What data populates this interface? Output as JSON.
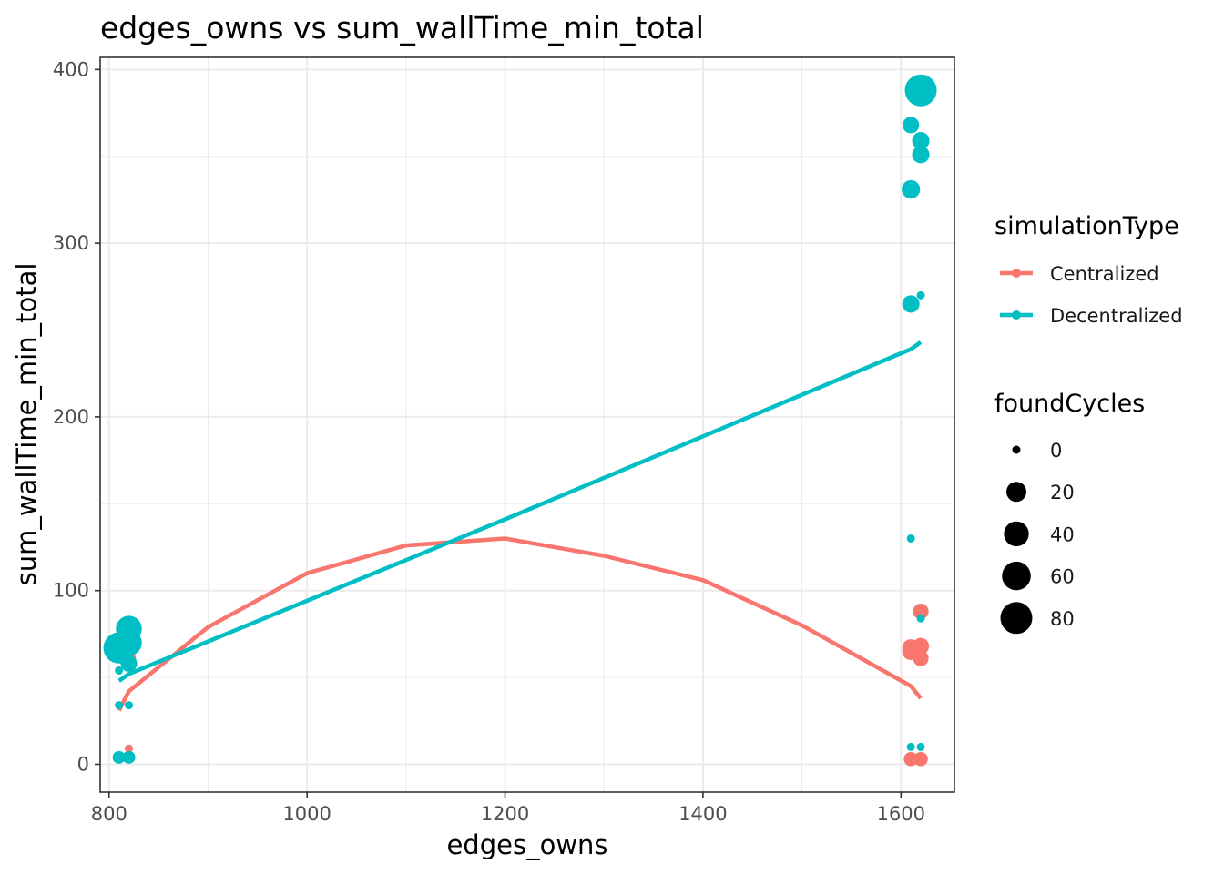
{
  "chart_data": {
    "type": "scatter",
    "title": "edges_owns  vs  sum_wallTime_min_total",
    "xlabel": "edges_owns",
    "ylabel": "sum_wallTime_min_total",
    "xlim": [
      791,
      1654
    ],
    "ylim": [
      -16,
      407
    ],
    "x_ticks": [
      800,
      1000,
      1200,
      1400,
      1600
    ],
    "y_ticks": [
      0,
      100,
      200,
      300,
      400
    ],
    "grid": true,
    "legend_position": "right",
    "color_legend": {
      "title": "simulationType",
      "entries": [
        "Centralized",
        "Decentralized"
      ]
    },
    "size_legend": {
      "title": "foundCycles",
      "entries": [
        0,
        20,
        40,
        60,
        80
      ]
    },
    "series": [
      {
        "name": "Centralized",
        "color": "#F8766D",
        "points": [
          {
            "x": 810,
            "y": 3,
            "size": 0
          },
          {
            "x": 810,
            "y": 4,
            "size": 0
          },
          {
            "x": 820,
            "y": 3,
            "size": 0
          },
          {
            "x": 820,
            "y": 9,
            "size": 0
          },
          {
            "x": 820,
            "y": 61,
            "size": 5
          },
          {
            "x": 1610,
            "y": 3,
            "size": 5
          },
          {
            "x": 1620,
            "y": 3,
            "size": 5
          },
          {
            "x": 1610,
            "y": 65,
            "size": 12
          },
          {
            "x": 1610,
            "y": 67,
            "size": 12
          },
          {
            "x": 1620,
            "y": 61,
            "size": 8
          },
          {
            "x": 1620,
            "y": 68,
            "size": 10
          },
          {
            "x": 1620,
            "y": 88,
            "size": 8
          }
        ],
        "trend": [
          {
            "x": 810,
            "y": 31
          },
          {
            "x": 820,
            "y": 42
          },
          {
            "x": 900,
            "y": 79
          },
          {
            "x": 1000,
            "y": 110
          },
          {
            "x": 1100,
            "y": 126
          },
          {
            "x": 1200,
            "y": 130
          },
          {
            "x": 1300,
            "y": 120
          },
          {
            "x": 1400,
            "y": 106
          },
          {
            "x": 1500,
            "y": 80
          },
          {
            "x": 1610,
            "y": 45
          },
          {
            "x": 1620,
            "y": 38
          }
        ]
      },
      {
        "name": "Decentralized",
        "color": "#00BFC4",
        "points": [
          {
            "x": 810,
            "y": 4,
            "size": 3
          },
          {
            "x": 820,
            "y": 4,
            "size": 3
          },
          {
            "x": 810,
            "y": 34,
            "size": 0
          },
          {
            "x": 820,
            "y": 34,
            "size": 0
          },
          {
            "x": 810,
            "y": 54,
            "size": 0
          },
          {
            "x": 810,
            "y": 67,
            "size": 75
          },
          {
            "x": 820,
            "y": 58,
            "size": 10
          },
          {
            "x": 820,
            "y": 70,
            "size": 45
          },
          {
            "x": 820,
            "y": 78,
            "size": 45
          },
          {
            "x": 1610,
            "y": 10,
            "size": 0
          },
          {
            "x": 1620,
            "y": 10,
            "size": 0
          },
          {
            "x": 1620,
            "y": 84,
            "size": 0
          },
          {
            "x": 1610,
            "y": 130,
            "size": 0
          },
          {
            "x": 1610,
            "y": 265,
            "size": 12
          },
          {
            "x": 1620,
            "y": 270,
            "size": 0
          },
          {
            "x": 1610,
            "y": 331,
            "size": 15
          },
          {
            "x": 1620,
            "y": 351,
            "size": 12
          },
          {
            "x": 1620,
            "y": 359,
            "size": 12
          },
          {
            "x": 1610,
            "y": 368,
            "size": 10
          },
          {
            "x": 1620,
            "y": 388,
            "size": 80
          }
        ],
        "trend": [
          {
            "x": 810,
            "y": 48
          },
          {
            "x": 820,
            "y": 52
          },
          {
            "x": 1200,
            "y": 141
          },
          {
            "x": 1610,
            "y": 239
          },
          {
            "x": 1620,
            "y": 243
          }
        ]
      }
    ]
  }
}
